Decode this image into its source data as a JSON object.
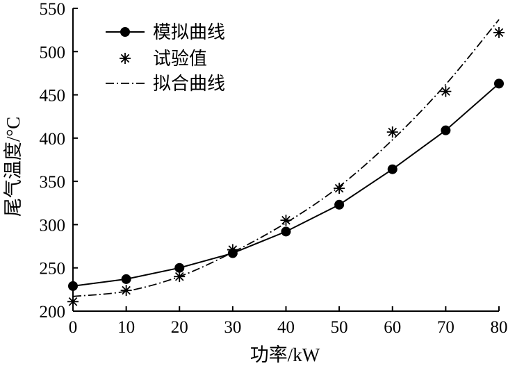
{
  "chart_data": {
    "type": "line",
    "xlabel": "功率/kW",
    "ylabel": "尾气温度/°C",
    "xlim": [
      0,
      80
    ],
    "ylim": [
      200,
      550
    ],
    "xticks": [
      "0",
      "10",
      "20",
      "30",
      "40",
      "50",
      "60",
      "70",
      "80"
    ],
    "yticks": [
      "200",
      "250",
      "300",
      "350",
      "400",
      "450",
      "500",
      "550"
    ],
    "legend_position": "top-left",
    "grid": false,
    "series": [
      {
        "name": "模拟曲线",
        "style": "solid-line-circle-markers",
        "color": "#000000",
        "x": [
          0,
          10,
          20,
          30,
          40,
          50,
          60,
          70,
          80
        ],
        "y": [
          229,
          237,
          250,
          267,
          292,
          323,
          364,
          409,
          463
        ]
      },
      {
        "name": "试验值",
        "style": "asterisk-markers",
        "color": "#000000",
        "x": [
          0,
          10,
          20,
          30,
          40,
          50,
          60,
          70,
          80
        ],
        "y": [
          211,
          224,
          240,
          271,
          305,
          342,
          407,
          454,
          522
        ]
      },
      {
        "name": "拟合曲线",
        "style": "dash-dot-line",
        "color": "#000000",
        "x": [
          0,
          10,
          20,
          30,
          40,
          50,
          60,
          70,
          80
        ],
        "y": [
          217,
          223,
          240,
          268,
          302,
          344,
          398,
          462,
          537
        ]
      }
    ]
  }
}
